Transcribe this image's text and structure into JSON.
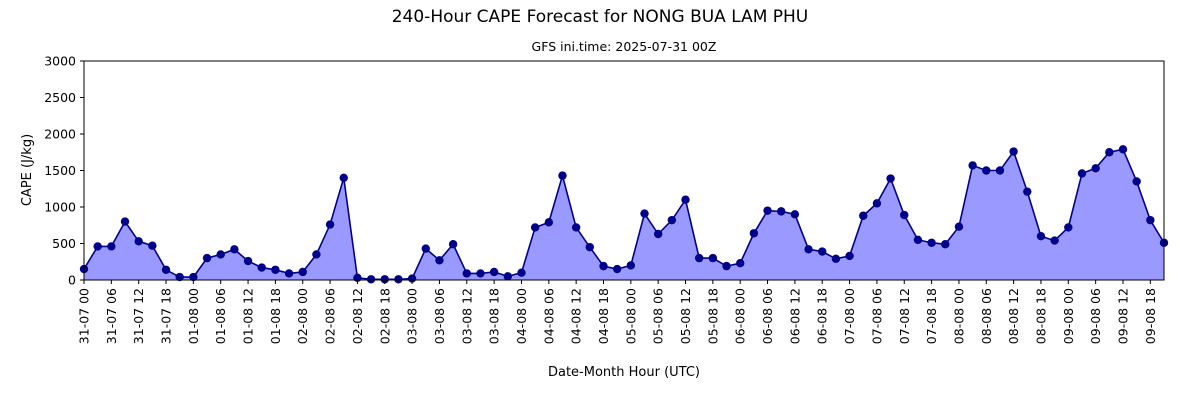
{
  "chart_data": {
    "type": "area",
    "title": "240-Hour CAPE Forecast for NONG BUA LAM PHU",
    "subtitle": "GFS ini.time: 2025-07-31 00Z",
    "xlabel": "Date-Month Hour (UTC)",
    "ylabel": "CAPE (J/kg)",
    "ylim": [
      0,
      3000
    ],
    "yticks": [
      0,
      500,
      1000,
      1500,
      2000,
      2500,
      3000
    ],
    "x_step_hours": 3,
    "xtick_labels": [
      "31-07 00",
      "31-07 06",
      "31-07 12",
      "31-07 18",
      "01-08 00",
      "01-08 06",
      "01-08 12",
      "01-08 18",
      "02-08 00",
      "02-08 06",
      "02-08 12",
      "02-08 18",
      "03-08 00",
      "03-08 06",
      "03-08 12",
      "03-08 18",
      "04-08 00",
      "04-08 06",
      "04-08 12",
      "04-08 18",
      "05-08 00",
      "05-08 06",
      "05-08 12",
      "05-08 18",
      "06-08 00",
      "06-08 06",
      "06-08 12",
      "06-08 18",
      "07-08 00",
      "07-08 06",
      "07-08 12",
      "07-08 18",
      "08-08 00",
      "08-08 06",
      "08-08 12",
      "08-08 18",
      "09-08 00",
      "09-08 06",
      "09-08 12",
      "09-08 18"
    ],
    "grid": false,
    "line_color": "#00008b",
    "fill_color": "#9999ff",
    "series": [
      {
        "values": [
          150,
          460,
          460,
          800,
          530,
          470,
          140,
          40,
          40,
          300,
          350,
          420,
          260,
          170,
          140,
          90,
          110,
          350,
          760,
          1400,
          30,
          10,
          10,
          10,
          20,
          430,
          270,
          490,
          90,
          90,
          110,
          50,
          100,
          720,
          790,
          1430,
          720,
          450,
          190,
          150,
          200,
          910,
          630,
          820,
          1100,
          300,
          300,
          190,
          230,
          640,
          950,
          940,
          900,
          420,
          390,
          290,
          330,
          880,
          1050,
          1390,
          890,
          550,
          510,
          490,
          730,
          1570,
          1500,
          1500,
          1760,
          1210,
          600,
          540,
          720,
          1460,
          1530,
          1750,
          1790,
          1350,
          820,
          510
        ]
      }
    ]
  }
}
